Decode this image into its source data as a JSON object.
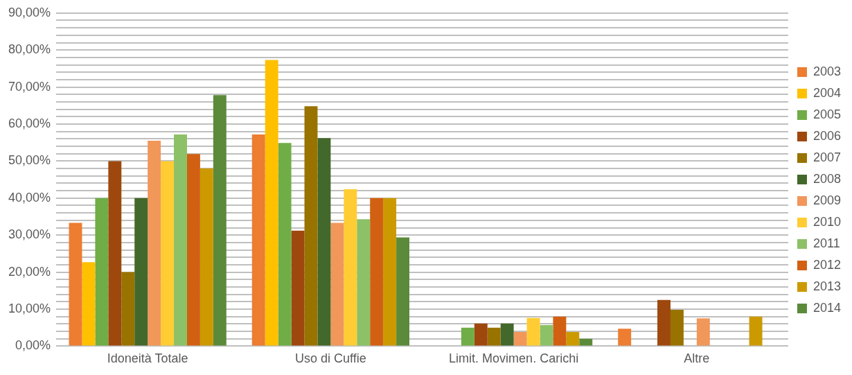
{
  "chart_data": {
    "type": "bar",
    "categories": [
      "Idoneità Totale",
      "Uso di Cuffie",
      "Limit. Movimen. Carichi",
      "Altre"
    ],
    "series": [
      {
        "name": "2003",
        "color": "#ed7d31",
        "values": [
          33.3,
          57.2,
          0,
          4.7
        ]
      },
      {
        "name": "2004",
        "color": "#ffc000",
        "values": [
          22.7,
          77.3,
          0,
          0
        ]
      },
      {
        "name": "2005",
        "color": "#70ad47",
        "values": [
          40,
          54.9,
          5,
          0
        ]
      },
      {
        "name": "2006",
        "color": "#9e480e",
        "values": [
          50,
          31.2,
          6.1,
          12.5
        ]
      },
      {
        "name": "2007",
        "color": "#997300",
        "values": [
          20,
          64.8,
          5,
          9.8
        ]
      },
      {
        "name": "2008",
        "color": "#43682b",
        "values": [
          40,
          56.2,
          6.1,
          0
        ]
      },
      {
        "name": "2009",
        "color": "#f1975a",
        "values": [
          55.5,
          33.3,
          3.8,
          7.5
        ]
      },
      {
        "name": "2010",
        "color": "#ffcd33",
        "values": [
          50,
          42.4,
          7.6,
          0
        ]
      },
      {
        "name": "2011",
        "color": "#8cc168",
        "values": [
          57.2,
          34.3,
          5.7,
          0
        ]
      },
      {
        "name": "2012",
        "color": "#d26012",
        "values": [
          51.9,
          40,
          8,
          0
        ]
      },
      {
        "name": "2013",
        "color": "#cc9a00",
        "values": [
          48,
          40,
          3.8,
          8
        ]
      },
      {
        "name": "2014",
        "color": "#5b8b3a",
        "values": [
          67.8,
          29.4,
          2,
          0
        ]
      }
    ],
    "ylim": [
      0,
      90
    ],
    "yticks": [
      {
        "value": 0,
        "label": "0,00%"
      },
      {
        "value": 2,
        "label": null
      },
      {
        "value": 4,
        "label": null
      },
      {
        "value": 6,
        "label": null
      },
      {
        "value": 8,
        "label": null
      },
      {
        "value": 10,
        "label": "10,00%"
      },
      {
        "value": 12,
        "label": null
      },
      {
        "value": 14,
        "label": null
      },
      {
        "value": 16,
        "label": null
      },
      {
        "value": 18,
        "label": null
      },
      {
        "value": 20,
        "label": "20,00%"
      },
      {
        "value": 22,
        "label": null
      },
      {
        "value": 24,
        "label": null
      },
      {
        "value": 26,
        "label": null
      },
      {
        "value": 28,
        "label": null
      },
      {
        "value": 30,
        "label": "30,00%"
      },
      {
        "value": 32,
        "label": null
      },
      {
        "value": 34,
        "label": null
      },
      {
        "value": 36,
        "label": null
      },
      {
        "value": 38,
        "label": null
      },
      {
        "value": 40,
        "label": "40,00%"
      },
      {
        "value": 42,
        "label": null
      },
      {
        "value": 44,
        "label": null
      },
      {
        "value": 46,
        "label": null
      },
      {
        "value": 48,
        "label": null
      },
      {
        "value": 50,
        "label": "50,00%"
      },
      {
        "value": 52,
        "label": null
      },
      {
        "value": 54,
        "label": null
      },
      {
        "value": 56,
        "label": null
      },
      {
        "value": 58,
        "label": null
      },
      {
        "value": 60,
        "label": "60,00%"
      },
      {
        "value": 62,
        "label": null
      },
      {
        "value": 64,
        "label": null
      },
      {
        "value": 66,
        "label": null
      },
      {
        "value": 68,
        "label": null
      },
      {
        "value": 70,
        "label": "70,00%"
      },
      {
        "value": 72,
        "label": null
      },
      {
        "value": 74,
        "label": null
      },
      {
        "value": 76,
        "label": null
      },
      {
        "value": 78,
        "label": null
      },
      {
        "value": 80,
        "label": "80,00%"
      },
      {
        "value": 82,
        "label": null
      },
      {
        "value": 84,
        "label": null
      },
      {
        "value": 86,
        "label": null
      },
      {
        "value": 88,
        "label": null
      },
      {
        "value": 90,
        "label": "90,00%"
      }
    ],
    "grid": "y",
    "legend": "right"
  }
}
